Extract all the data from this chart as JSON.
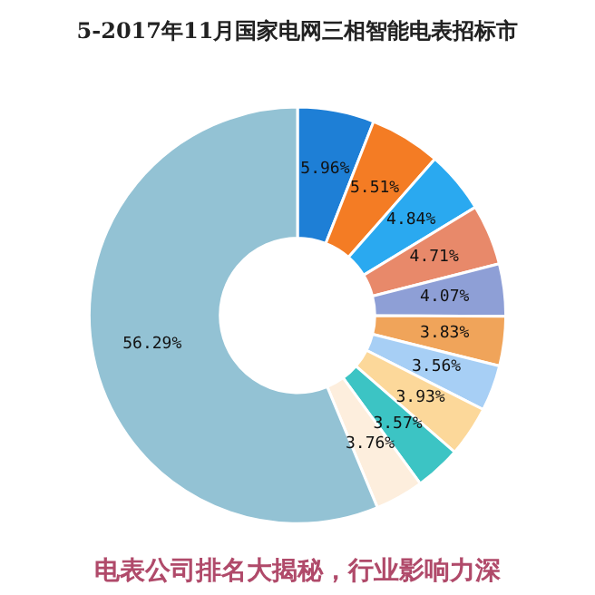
{
  "chart_data": {
    "type": "donut",
    "title": "5-2017年11月国家电网三相智能电表招标市",
    "categories": [
      null,
      null,
      null,
      null,
      null,
      null,
      null,
      null,
      null,
      null,
      null
    ],
    "values": [
      5.96,
      5.51,
      4.84,
      4.71,
      4.07,
      3.83,
      3.56,
      3.93,
      3.57,
      3.76,
      56.29
    ],
    "colors": [
      "#1e7fd6",
      "#f47c24",
      "#2aa9f0",
      "#e8896a",
      "#8e9fd6",
      "#f0a45a",
      "#a7cff5",
      "#fcd89a",
      "#3cc4c4",
      "#fdeedd",
      "#93c2d4"
    ],
    "value_labels": [
      "5.96%",
      "5.51%",
      "4.84%",
      "4.71%",
      "4.07%",
      "3.83%",
      "3.56%",
      "3.93%",
      "3.57%",
      "3.76%",
      "56.29%"
    ],
    "legend": false,
    "annotations": [
      "电表公司排名大揭秘，行业影响力深"
    ]
  }
}
